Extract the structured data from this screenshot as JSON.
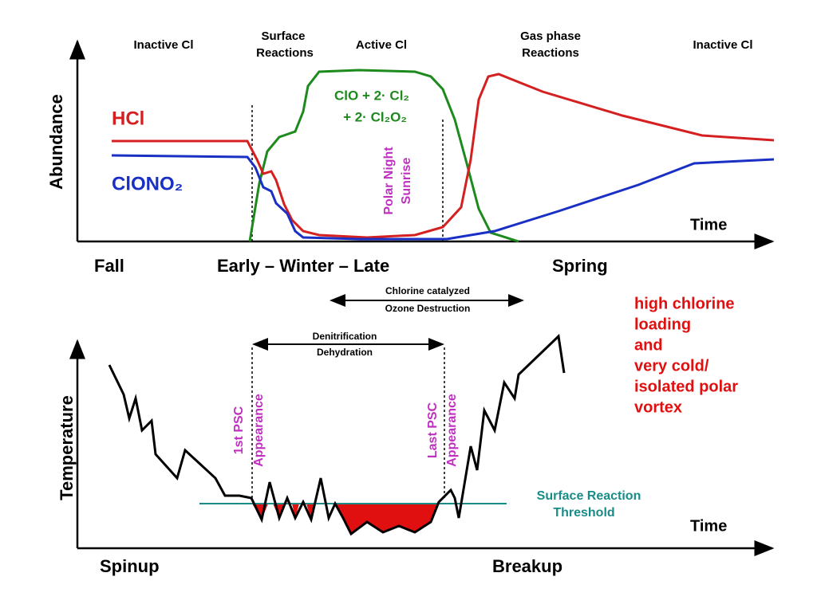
{
  "top_panel": {
    "phases": [
      "Inactive Cl",
      "Surface",
      "Reactions",
      "Active Cl",
      "Gas phase",
      "Reactions",
      "Inactive Cl"
    ],
    "y_label": "Abundance",
    "hcl": "HCl",
    "clono2": "ClONO₂",
    "active_label": [
      "ClO + 2· Cl₂",
      "+ 2· Cl₂O₂"
    ],
    "polar_night": [
      "Polar Night",
      "Sunrise"
    ],
    "x_label": "Time",
    "seasons": [
      "Fall",
      "Early – Winter – Late",
      "Spring"
    ]
  },
  "ozone_arrow": [
    "Chlorine catalyzed",
    "Ozone Destruction"
  ],
  "denitrification_arrow": [
    "Denitrification",
    "Dehydration"
  ],
  "bottom_panel": {
    "y_label": "Temperature",
    "first_psc": [
      "1st PSC",
      "Appearance"
    ],
    "last_psc": [
      "Last PSC",
      "Appearance"
    ],
    "threshold": [
      "Surface Reaction",
      "Threshold"
    ],
    "x_label": "Time",
    "spinup": "Spinup",
    "breakup": "Breakup"
  },
  "note": [
    "high chlorine",
    "loading",
    "and",
    "very cold/",
    "isolated polar",
    "vortex"
  ]
}
